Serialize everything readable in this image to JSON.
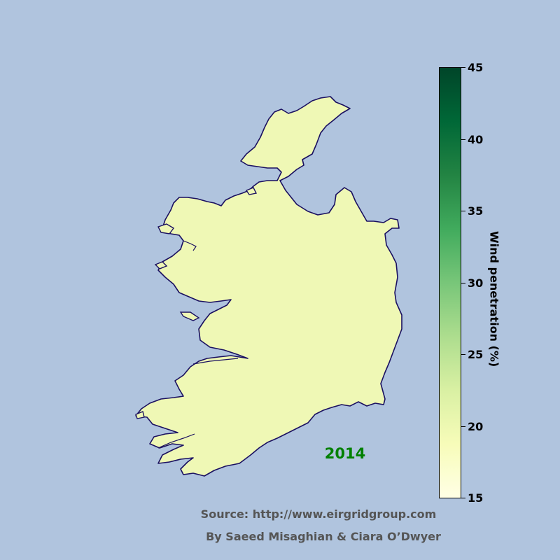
{
  "map": {
    "region": "Ireland",
    "fill_color": "#eff8b5",
    "outline_color": "#1a1060",
    "background_color": "#b0c4de"
  },
  "year_label": "2014",
  "year_color": "#008000",
  "colorbar": {
    "title": "Wind penetration (%)",
    "colormap": "YlGn",
    "min": 15,
    "max": 45,
    "ticks": [
      "45",
      "40",
      "35",
      "30",
      "25",
      "20",
      "15"
    ]
  },
  "footer": {
    "source": "Source: http://www.eirgridgroup.com",
    "credit": "By Saeed Misaghian & Ciara O’Dwyer"
  }
}
